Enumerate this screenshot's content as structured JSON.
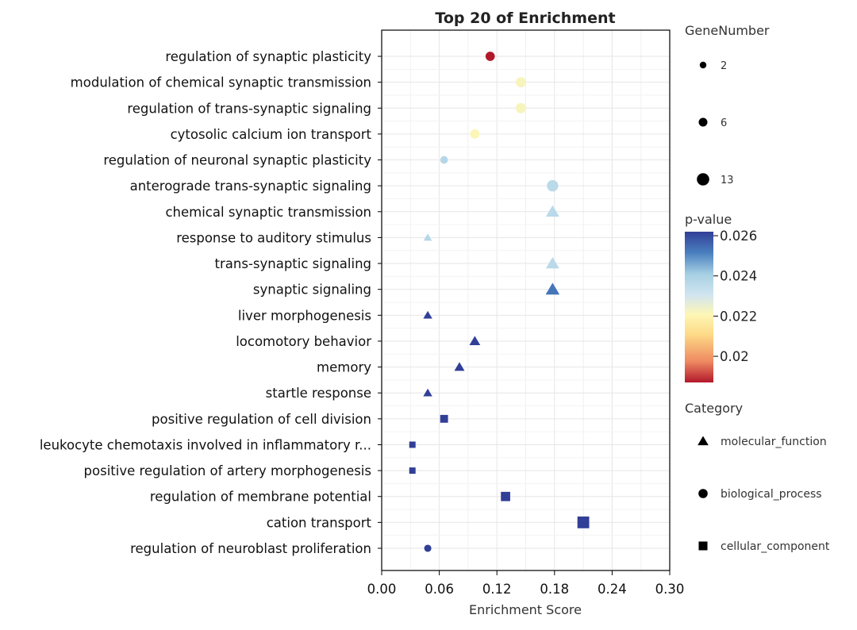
{
  "chart_data": {
    "type": "scatter",
    "title": "Top 20 of  Enrichment",
    "xlabel": "Enrichment Score",
    "ylabel": "",
    "xlim": [
      0.0,
      0.3
    ],
    "x_ticks": [
      "0.00",
      "0.06",
      "0.12",
      "0.18",
      "0.24",
      "0.30"
    ],
    "grid": true,
    "terms": [
      {
        "label": "regulation of synaptic plasticity",
        "x": 0.113,
        "p": 0.0187,
        "genes": 7,
        "category": "biological_process"
      },
      {
        "label": "modulation of chemical synaptic transmission",
        "x": 0.145,
        "p": 0.0222,
        "genes": 9,
        "category": "biological_process"
      },
      {
        "label": "regulation of trans-synaptic signaling",
        "x": 0.145,
        "p": 0.0222,
        "genes": 9,
        "category": "biological_process"
      },
      {
        "label": "cytosolic calcium ion transport",
        "x": 0.097,
        "p": 0.0221,
        "genes": 7,
        "category": "biological_process"
      },
      {
        "label": "regulation of neuronal synaptic plasticity",
        "x": 0.065,
        "p": 0.0237,
        "genes": 4,
        "category": "biological_process"
      },
      {
        "label": "anterograde trans-synaptic signaling",
        "x": 0.178,
        "p": 0.0236,
        "genes": 11,
        "category": "biological_process"
      },
      {
        "label": "chemical synaptic transmission",
        "x": 0.178,
        "p": 0.0236,
        "genes": 11,
        "category": "molecular_function"
      },
      {
        "label": "response to auditory stimulus",
        "x": 0.048,
        "p": 0.0237,
        "genes": 3,
        "category": "molecular_function"
      },
      {
        "label": "trans-synaptic signaling",
        "x": 0.178,
        "p": 0.0236,
        "genes": 11,
        "category": "molecular_function"
      },
      {
        "label": "synaptic signaling",
        "x": 0.178,
        "p": 0.0253,
        "genes": 12,
        "category": "molecular_function"
      },
      {
        "label": "liver morphogenesis",
        "x": 0.048,
        "p": 0.0262,
        "genes": 4,
        "category": "molecular_function"
      },
      {
        "label": "locomotory behavior",
        "x": 0.097,
        "p": 0.0262,
        "genes": 7,
        "category": "molecular_function"
      },
      {
        "label": "memory",
        "x": 0.081,
        "p": 0.0262,
        "genes": 6,
        "category": "molecular_function"
      },
      {
        "label": "startle response",
        "x": 0.048,
        "p": 0.0262,
        "genes": 4,
        "category": "molecular_function"
      },
      {
        "label": "positive regulation of cell division",
        "x": 0.065,
        "p": 0.0262,
        "genes": 5,
        "category": "cellular_component"
      },
      {
        "label": "leukocyte chemotaxis involved in inflammatory r...",
        "x": 0.032,
        "p": 0.0262,
        "genes": 2,
        "category": "cellular_component"
      },
      {
        "label": "positive regulation of artery morphogenesis",
        "x": 0.032,
        "p": 0.0262,
        "genes": 2,
        "category": "cellular_component"
      },
      {
        "label": "regulation of membrane potential",
        "x": 0.129,
        "p": 0.0262,
        "genes": 8,
        "category": "cellular_component"
      },
      {
        "label": "cation transport",
        "x": 0.21,
        "p": 0.0262,
        "genes": 13,
        "category": "cellular_component"
      },
      {
        "label": "regulation of neuroblast proliferation",
        "x": 0.048,
        "p": 0.0262,
        "genes": 3,
        "category": "biological_process"
      }
    ],
    "legend_size": {
      "title": "GeneNumber",
      "entries": [
        {
          "label": "2",
          "value": 2
        },
        {
          "label": "6",
          "value": 6
        },
        {
          "label": "13",
          "value": 13
        }
      ]
    },
    "legend_color": {
      "title": "p-value",
      "range": [
        0.0187,
        0.0262
      ],
      "ticks": [
        {
          "label": "0.026",
          "value": 0.026
        },
        {
          "label": "0.024",
          "value": 0.024
        },
        {
          "label": "0.022",
          "value": 0.022
        },
        {
          "label": "0.02",
          "value": 0.02
        }
      ],
      "colormap_stops": [
        "#b2182b",
        "#ef8a62",
        "#fddb87",
        "#fdf6b5",
        "#d1e5f0",
        "#a6cfe3",
        "#4a7fbf",
        "#313f97"
      ]
    },
    "legend_shape": {
      "title": "Category",
      "entries": [
        {
          "label": "molecular_function",
          "shape": "triangle"
        },
        {
          "label": "biological_process",
          "shape": "circle"
        },
        {
          "label": "cellular_component",
          "shape": "square"
        }
      ]
    }
  }
}
